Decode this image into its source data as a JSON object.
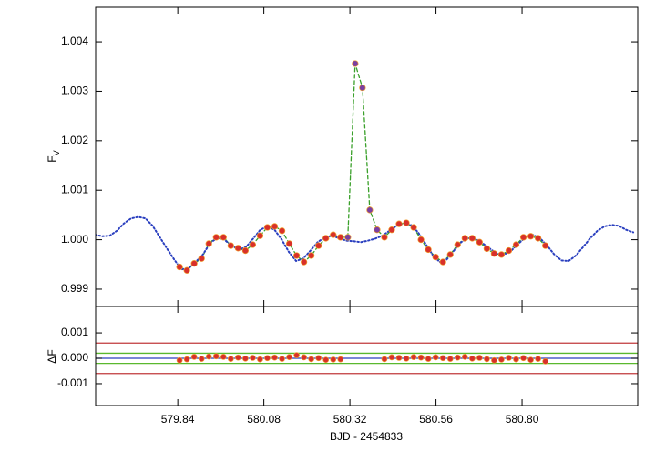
{
  "chart_data": [
    {
      "type": "line",
      "ylabel": "F",
      "ylabel_sub": "V",
      "ylim": [
        0.99865,
        1.0047
      ],
      "yticks": [
        0.999,
        {
          "value": 1,
          "label": "1.000"
        },
        1.001,
        1.002,
        1.003,
        1.004
      ],
      "series": [
        {
          "x": [
            579.845,
            579.8654,
            579.8858,
            579.9062,
            579.9266,
            579.947,
            579.9674,
            579.9878,
            580.0082,
            580.0286,
            580.049,
            580.0694,
            580.0898,
            580.1102,
            580.1306,
            580.151,
            580.1714,
            580.1918,
            580.2122,
            580.2326,
            580.253,
            580.2734,
            580.2938,
            580.3142,
            580.3346,
            580.355,
            580.3754,
            580.3958,
            580.4162,
            580.4366,
            580.457,
            580.4774,
            580.4978,
            580.5182,
            580.5386,
            580.559,
            580.5794,
            580.5998,
            580.6202,
            580.6406,
            580.661,
            580.6814,
            580.7018,
            580.7222,
            580.7426,
            580.763,
            580.7834,
            580.8038,
            580.8242,
            580.8446,
            580.865
          ],
          "values": [
            0.99945,
            0.99938,
            0.99952,
            0.99962,
            0.99992,
            1.00005,
            1.00005,
            0.99988,
            0.99983,
            0.99978,
            0.9999,
            1.00008,
            1.00025,
            1.00027,
            1.00018,
            0.99992,
            0.99968,
            0.99955,
            0.99968,
            0.99988,
            1.00003,
            1.0001,
            1.00005,
            1.00005,
            1.00356,
            1.00307,
            1.0006,
            1.0002,
            1.00005,
            1.0002,
            1.00032,
            1.00034,
            1.00025,
            1.0,
            0.9998,
            0.99965,
            0.99955,
            0.9997,
            0.9999,
            1.00003,
            1.00003,
            0.99995,
            0.99982,
            0.99972,
            0.9997,
            0.99978,
            0.9999,
            1.00005,
            1.00007,
            1.00003,
            0.99988
          ],
          "colors": [
            "#d8302a",
            "#d8302a",
            "#d8302a",
            "#d8302a",
            "#d8302a",
            "#d8302a",
            "#d8302a",
            "#d8302a",
            "#d8302a",
            "#d8302a",
            "#d8302a",
            "#d8302a",
            "#d8302a",
            "#d8302a",
            "#d8302a",
            "#d8302a",
            "#d8302a",
            "#d8302a",
            "#d8302a",
            "#d8302a",
            "#d8302a",
            "#d8302a",
            "#d8302a",
            "#7b3fa0",
            "#7b3fa0",
            "#7b3fa0",
            "#7b3fa0",
            "#7b3fa0",
            "#d8302a",
            "#d8302a",
            "#d8302a",
            "#d8302a",
            "#d8302a",
            "#d8302a",
            "#d8302a",
            "#d8302a",
            "#d8302a",
            "#d8302a",
            "#d8302a",
            "#d8302a",
            "#d8302a",
            "#d8302a",
            "#d8302a",
            "#d8302a",
            "#d8302a",
            "#d8302a",
            "#d8302a",
            "#d8302a",
            "#d8302a",
            "#d8302a",
            "#d8302a"
          ],
          "line_color": "#3aa02a",
          "line_style": "dashed"
        },
        {
          "x": [
            579.61,
            579.63,
            579.65,
            579.67,
            579.69,
            579.71,
            579.73,
            579.75,
            579.77,
            579.79,
            579.81,
            579.83,
            579.85,
            579.87,
            579.89,
            579.91,
            579.93,
            579.95,
            579.97,
            579.99,
            580.01,
            580.03,
            580.05,
            580.07,
            580.09,
            580.11,
            580.13,
            580.15,
            580.17,
            580.19,
            580.21,
            580.23,
            580.25,
            580.27,
            580.29,
            580.31,
            580.33,
            580.35,
            580.37,
            580.39,
            580.41,
            580.43,
            580.45,
            580.47,
            580.49,
            580.51,
            580.53,
            580.55,
            580.57,
            580.59,
            580.61,
            580.63,
            580.65,
            580.67,
            580.69,
            580.71,
            580.73,
            580.75,
            580.77,
            580.79,
            580.81,
            580.83,
            580.85,
            580.87,
            580.89,
            580.91,
            580.93,
            580.95,
            580.97,
            580.99,
            581.01,
            581.03,
            581.05,
            581.07,
            581.09,
            581.11
          ],
          "values": [
            1.0001,
            1.00007,
            1.00008,
            1.00018,
            1.00033,
            1.00043,
            1.00046,
            1.00043,
            1.00028,
            1.00005,
            0.99982,
            0.9996,
            0.9994,
            0.99942,
            0.99955,
            0.9997,
            0.99993,
            1.00004,
            1.0,
            0.99988,
            0.9998,
            0.99985,
            1.00002,
            1.0002,
            1.00027,
            1.0002,
            1.0,
            0.99975,
            0.99957,
            0.99962,
            0.99978,
            0.99995,
            1.00005,
            1.00008,
            1.00003,
            0.99998,
            0.99997,
            0.99995,
            0.99998,
            1.00002,
            1.00008,
            1.00018,
            1.00028,
            1.00033,
            1.0003,
            1.00015,
            0.99993,
            0.9997,
            0.99955,
            0.9996,
            0.99978,
            0.99995,
            1.00003,
            1.00002,
            0.99993,
            0.99982,
            0.99972,
            0.9997,
            0.99978,
            0.99992,
            1.00005,
            1.0001,
            1.00003,
            0.99988,
            0.9997,
            0.99958,
            0.99957,
            0.99968,
            0.99985,
            1.00003,
            1.00018,
            1.00027,
            1.0003,
            1.00028,
            1.0002,
            1.00015
          ],
          "color": "#2a3fbf",
          "line_style": "dotted"
        }
      ]
    },
    {
      "type": "scatter",
      "ylabel": "ΔF",
      "xlabel": "BJD - 2454833",
      "xlim": [
        579.611,
        581.1225
      ],
      "xticks": [
        579.84,
        580.08,
        580.32,
        580.56,
        {
          "value": 580.8,
          "label": "580.80"
        }
      ],
      "ylim": [
        -0.00186,
        0.00204
      ],
      "yticks": [
        -0.001,
        {
          "value": 0,
          "label": "0.000"
        },
        0.001
      ],
      "hlines": [
        {
          "value": 0.0006,
          "color": "#c0393b"
        },
        {
          "value": 0.0002,
          "color": "#5ab82e"
        },
        {
          "value": 0,
          "color": "#2a3fbf"
        },
        {
          "value": -0.0002,
          "color": "#5ab82e"
        },
        {
          "value": -0.0006,
          "color": "#c0393b"
        }
      ],
      "series": [
        {
          "values": [
            -8e-05,
            -4e-05,
            6e-05,
            -2e-05,
            7e-05,
            8e-05,
            6e-05,
            -2e-05,
            3e-05,
            -1e-05,
            2e-05,
            -4e-05,
            1e-05,
            3e-05,
            -2e-05,
            5e-05,
            0.00012,
            4e-05,
            -3e-05,
            1e-05,
            -6e-05,
            -5e-05,
            -4e-05,
            null,
            null,
            null,
            null,
            null,
            -3e-05,
            4e-05,
            2e-05,
            -1e-05,
            5e-05,
            3e-05,
            -2e-05,
            4e-05,
            1e-05,
            -2e-05,
            3e-05,
            6e-05,
            -1e-05,
            2e-05,
            -3e-05,
            -8e-05,
            -5e-05,
            2e-05,
            -4e-05,
            1e-05,
            -6e-05,
            -2e-05,
            -0.00012
          ],
          "color": "#d8302a"
        }
      ]
    }
  ]
}
